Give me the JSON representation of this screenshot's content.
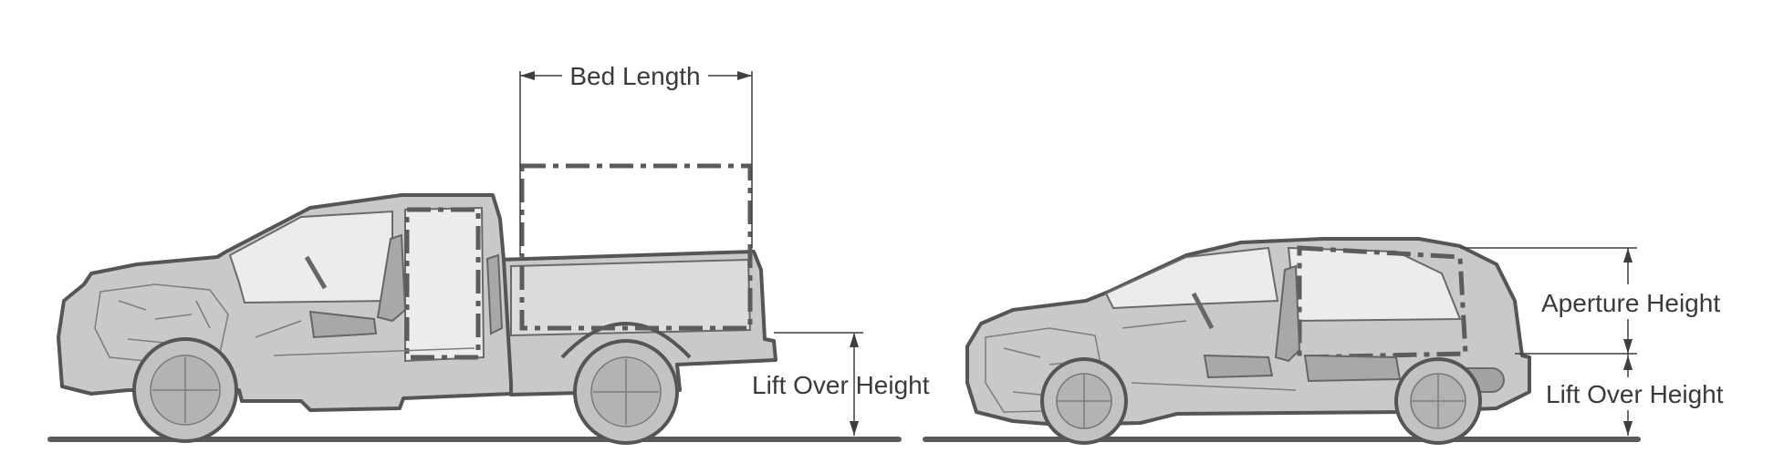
{
  "diagram": {
    "left_vehicle": {
      "labels": {
        "bed_length": "Bed Length",
        "lift_over_height": "Lift Over Height"
      }
    },
    "right_vehicle": {
      "labels": {
        "aperture_height": "Aperture Height",
        "lift_over_height": "Lift Over Height"
      }
    },
    "colors": {
      "body": "#c9c9c9",
      "outline": "#555555",
      "dimension_lines": "#3f3f3f"
    }
  }
}
